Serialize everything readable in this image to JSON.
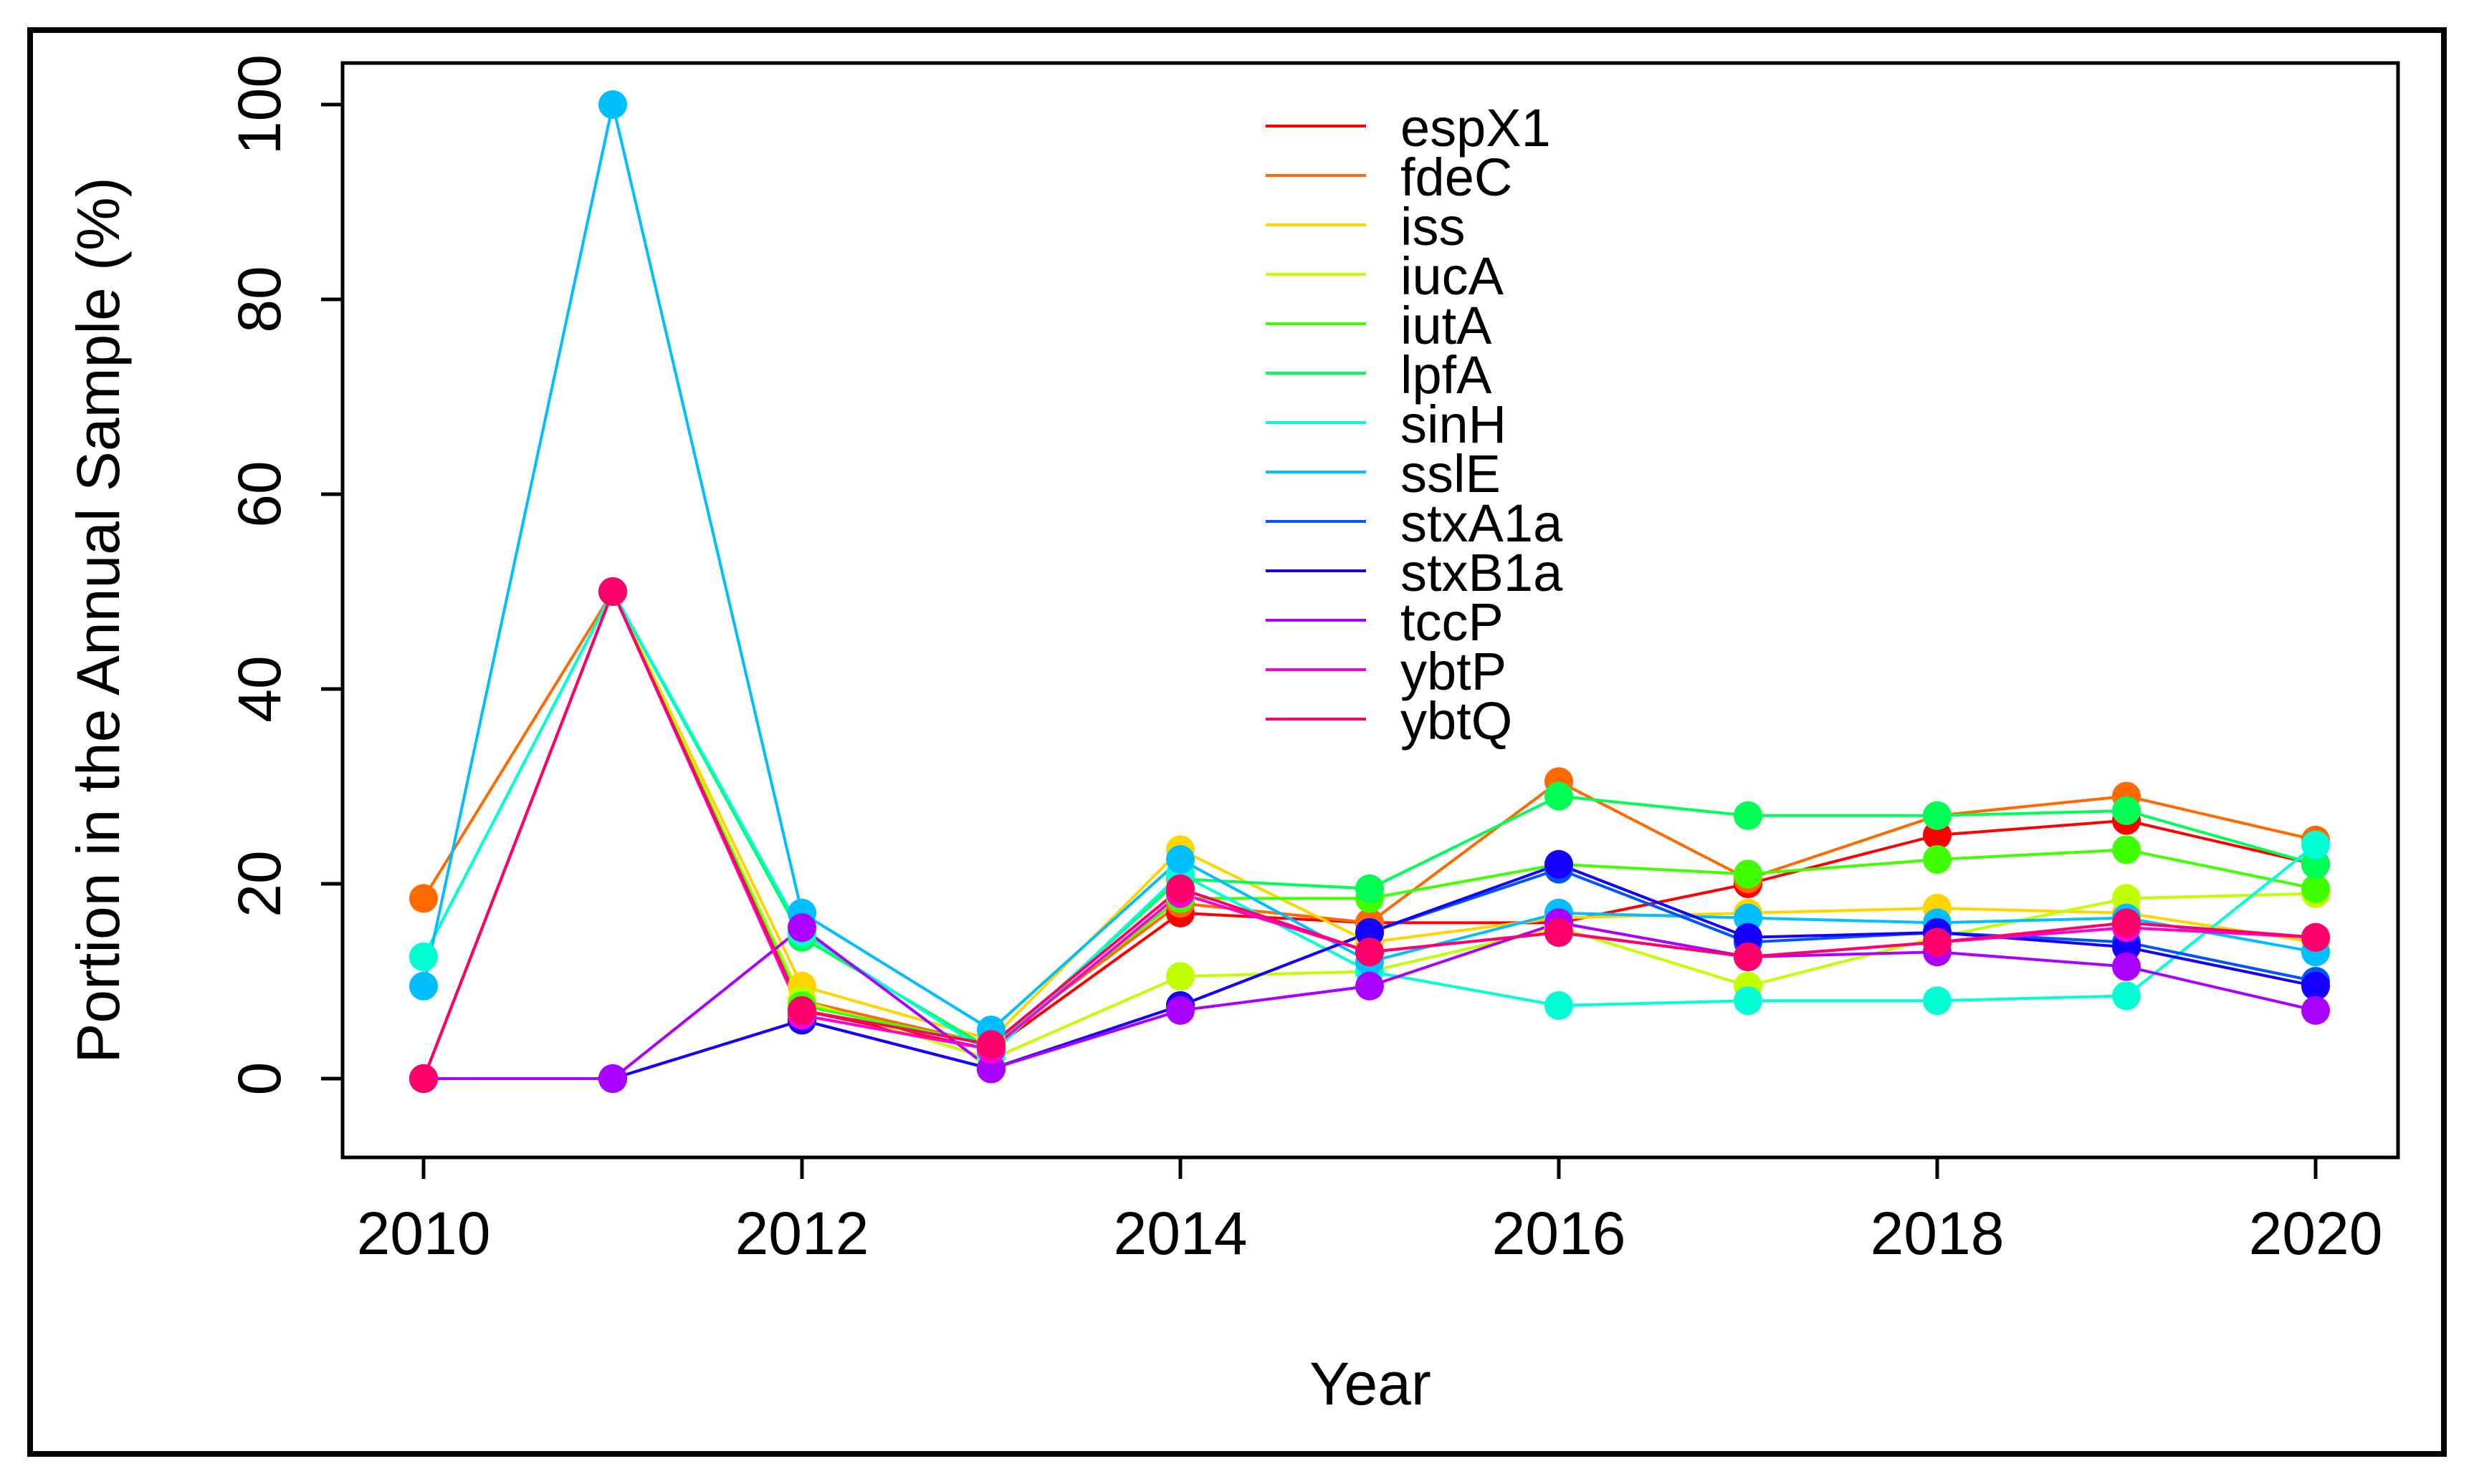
{
  "chart_data": {
    "type": "line",
    "xlabel": "Year",
    "ylabel": "Portion in the Annual Sample (%)",
    "xlim": [
      2010,
      2020
    ],
    "ylim": [
      0,
      100
    ],
    "x_ticks": [
      2010,
      2012,
      2014,
      2016,
      2018,
      2020
    ],
    "y_ticks": [
      0,
      20,
      40,
      60,
      80,
      100
    ],
    "x": [
      2010,
      2011,
      2012,
      2013,
      2014,
      2015,
      2016,
      2017,
      2018,
      2019,
      2020
    ],
    "legend_position": "top-center",
    "series": [
      {
        "name": "espX1",
        "color": "#FF0000",
        "values": [
          0,
          50,
          7,
          3,
          17,
          16,
          16,
          20,
          25,
          26.5,
          22
        ]
      },
      {
        "name": "fdeC",
        "color": "#FF6A00",
        "values": [
          18.5,
          50,
          8,
          3.5,
          18,
          16,
          30.5,
          20.5,
          27,
          29,
          24.5
        ]
      },
      {
        "name": "iss",
        "color": "#FFD500",
        "values": [
          0,
          50,
          9.5,
          4,
          23.5,
          14,
          16.5,
          17,
          17.5,
          17,
          14
        ]
      },
      {
        "name": "iucA",
        "color": "#BFFF00",
        "values": [
          0,
          50,
          8,
          2,
          10.5,
          11,
          15.5,
          9.5,
          14.5,
          18.5,
          19
        ]
      },
      {
        "name": "iutA",
        "color": "#40FF00",
        "values": [
          0,
          50,
          7.5,
          3.5,
          18.5,
          18.5,
          22,
          21,
          22.5,
          23.5,
          19.5
        ]
      },
      {
        "name": "lpfA",
        "color": "#00FF55",
        "values": [
          12.5,
          50,
          14.5,
          3,
          20.5,
          19.5,
          29,
          27,
          27,
          27.5,
          22
        ]
      },
      {
        "name": "sinH",
        "color": "#00FFD5",
        "values": [
          12.5,
          50,
          15,
          2.5,
          21,
          11,
          7.5,
          8,
          8,
          8.5,
          24
        ]
      },
      {
        "name": "sslE",
        "color": "#00BFFF",
        "values": [
          9.5,
          100,
          17,
          5,
          22.5,
          12,
          17,
          16.5,
          16,
          16.5,
          13
        ]
      },
      {
        "name": "stxA1a",
        "color": "#0055FF",
        "values": [
          0,
          0,
          6,
          1,
          7.5,
          15,
          21.5,
          14,
          15,
          14,
          10
        ]
      },
      {
        "name": "stxB1a",
        "color": "#1500FF",
        "values": [
          0,
          0,
          6,
          1,
          7.5,
          15,
          22,
          14.5,
          15,
          13.5,
          9.5
        ]
      },
      {
        "name": "tccP",
        "color": "#AA00FF",
        "values": [
          0,
          0,
          15.5,
          1,
          7,
          9.5,
          16,
          12.5,
          13,
          11.5,
          7
        ]
      },
      {
        "name": "ybtP",
        "color": "#FF00D4",
        "values": [
          0,
          50,
          6.5,
          3,
          19,
          13,
          15,
          12.5,
          14,
          15.5,
          14.5
        ]
      },
      {
        "name": "ybtQ",
        "color": "#FF006A",
        "values": [
          0,
          50,
          7,
          3.5,
          19.5,
          13,
          15,
          12.5,
          14,
          16,
          14.5
        ]
      }
    ]
  }
}
